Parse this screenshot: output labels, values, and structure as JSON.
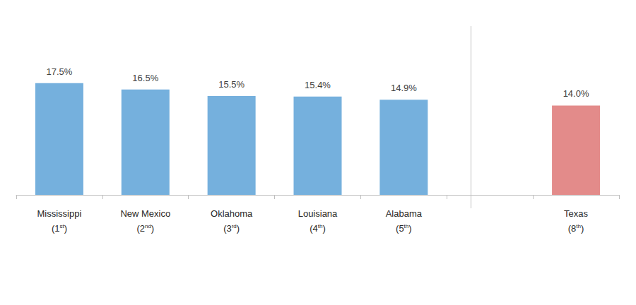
{
  "chart_data": {
    "type": "bar",
    "categories": [
      "Mississippi\n(1st)",
      "New Mexico\n(2nd)",
      "Oklahoma\n(3rd)",
      "Louisiana\n(4th)",
      "Alabama\n(5th)",
      null,
      "Texas\n(8th)"
    ],
    "values": [
      17.5,
      16.5,
      15.5,
      15.4,
      14.9,
      null,
      14.0
    ],
    "value_labels": [
      "17.5%",
      "16.5%",
      "15.5%",
      "15.4%",
      "14.9%",
      null,
      "14.0%"
    ],
    "colors": [
      "#75b0dd",
      "#75b0dd",
      "#75b0dd",
      "#75b0dd",
      "#75b0dd",
      "#75b0dd",
      "#e38b8a"
    ],
    "ylim": [
      0,
      25
    ],
    "yticks": [
      0,
      5,
      10,
      15,
      20,
      25
    ],
    "grid": false,
    "data_labels": true,
    "tick_labels": "x"
  }
}
